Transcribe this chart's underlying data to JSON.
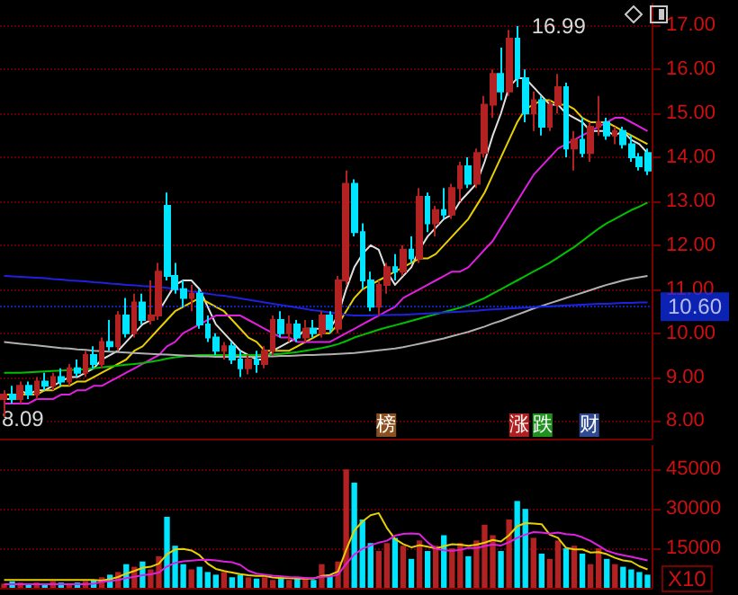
{
  "chart_data": [
    {
      "type": "candlestick",
      "categories": [
        null,
        null,
        null,
        null,
        null,
        null,
        null,
        null,
        null,
        null,
        null,
        null,
        null,
        null,
        null,
        null,
        null,
        null,
        null,
        null,
        null,
        null,
        null,
        null,
        null,
        null,
        null,
        null,
        null,
        null,
        null,
        null,
        null,
        null,
        null,
        null,
        null,
        null,
        null,
        null,
        null,
        null,
        null,
        null,
        null,
        null,
        null,
        null,
        null,
        null,
        null,
        null,
        null,
        null,
        null,
        null,
        null,
        null,
        null,
        null,
        null,
        null,
        null,
        null,
        null,
        null,
        null,
        null,
        null,
        null,
        null,
        null,
        null,
        null,
        null,
        null,
        null,
        null,
        null,
        null
      ],
      "ohlc": [
        [
          8.5,
          8.7,
          8.09,
          8.6
        ],
        [
          8.6,
          8.8,
          8.4,
          8.5
        ],
        [
          8.5,
          8.9,
          8.4,
          8.8
        ],
        [
          8.8,
          8.9,
          8.5,
          8.6
        ],
        [
          8.6,
          9.0,
          8.5,
          8.9
        ],
        [
          8.9,
          9.1,
          8.7,
          8.8
        ],
        [
          8.8,
          9.1,
          8.7,
          9.0
        ],
        [
          9.0,
          9.2,
          8.8,
          8.9
        ],
        [
          8.9,
          9.3,
          8.8,
          9.2
        ],
        [
          9.2,
          9.4,
          9.0,
          9.1
        ],
        [
          9.1,
          9.6,
          9.0,
          9.5
        ],
        [
          9.5,
          9.7,
          9.2,
          9.3
        ],
        [
          9.3,
          9.9,
          9.2,
          9.8
        ],
        [
          9.8,
          10.3,
          9.6,
          9.7
        ],
        [
          9.7,
          10.5,
          9.6,
          10.4
        ],
        [
          10.4,
          10.8,
          9.9,
          10.0
        ],
        [
          10.0,
          10.9,
          9.9,
          10.7
        ],
        [
          10.7,
          10.9,
          10.2,
          10.3
        ],
        [
          10.3,
          11.2,
          10.2,
          10.4
        ],
        [
          10.4,
          11.6,
          10.3,
          11.4
        ],
        [
          12.9,
          13.2,
          11.2,
          11.3
        ],
        [
          11.3,
          11.6,
          10.9,
          11.0
        ],
        [
          11.0,
          11.2,
          10.6,
          10.8
        ],
        [
          10.8,
          11.1,
          10.5,
          10.9
        ],
        [
          10.9,
          11.0,
          10.1,
          10.2
        ],
        [
          10.2,
          10.4,
          9.8,
          9.9
        ],
        [
          9.9,
          10.0,
          9.5,
          9.6
        ],
        [
          9.6,
          9.8,
          9.4,
          9.7
        ],
        [
          9.7,
          9.8,
          9.3,
          9.4
        ],
        [
          9.4,
          9.6,
          9.0,
          9.2
        ],
        [
          9.2,
          9.5,
          9.06,
          9.4
        ],
        [
          9.4,
          9.6,
          9.1,
          9.3
        ],
        [
          9.3,
          9.7,
          9.2,
          9.6
        ],
        [
          9.6,
          10.4,
          9.5,
          10.3
        ],
        [
          10.3,
          10.5,
          9.9,
          10.0
        ],
        [
          10.0,
          10.4,
          9.8,
          10.2
        ],
        [
          10.2,
          10.3,
          9.8,
          9.9
        ],
        [
          9.9,
          10.3,
          9.8,
          10.1
        ],
        [
          10.1,
          10.3,
          9.9,
          10.0
        ],
        [
          10.0,
          10.5,
          9.9,
          10.4
        ],
        [
          10.4,
          10.5,
          10.0,
          10.1
        ],
        [
          10.1,
          11.3,
          10.0,
          11.2
        ],
        [
          11.2,
          13.7,
          11.1,
          13.4
        ],
        [
          13.4,
          13.5,
          12.2,
          12.3
        ],
        [
          12.3,
          12.5,
          11.0,
          11.2
        ],
        [
          11.2,
          11.4,
          10.5,
          10.6
        ],
        [
          10.6,
          11.2,
          10.4,
          11.1
        ],
        [
          11.1,
          11.6,
          10.9,
          11.5
        ],
        [
          11.5,
          11.8,
          11.2,
          11.4
        ],
        [
          11.4,
          12.0,
          11.3,
          11.9
        ],
        [
          11.9,
          12.2,
          11.6,
          11.7
        ],
        [
          11.7,
          13.3,
          11.6,
          13.1
        ],
        [
          13.1,
          13.2,
          12.3,
          12.5
        ],
        [
          12.5,
          12.9,
          12.2,
          12.8
        ],
        [
          12.8,
          13.3,
          12.6,
          12.7
        ],
        [
          12.7,
          13.4,
          12.6,
          13.3
        ],
        [
          13.3,
          13.9,
          13.0,
          13.8
        ],
        [
          13.8,
          14.0,
          13.3,
          13.4
        ],
        [
          13.4,
          14.2,
          13.3,
          14.1
        ],
        [
          14.1,
          15.4,
          14.0,
          15.2
        ],
        [
          15.2,
          16.0,
          14.9,
          15.9
        ],
        [
          15.9,
          16.5,
          15.3,
          15.5
        ],
        [
          15.5,
          16.9,
          15.4,
          16.7
        ],
        [
          16.7,
          16.99,
          15.6,
          15.8
        ],
        [
          15.8,
          16.0,
          14.8,
          15.0
        ],
        [
          15.0,
          15.5,
          14.6,
          15.3
        ],
        [
          15.3,
          15.4,
          14.5,
          14.7
        ],
        [
          14.7,
          15.3,
          14.6,
          15.2
        ],
        [
          15.2,
          15.9,
          15.0,
          15.6
        ],
        [
          15.6,
          15.7,
          14.0,
          14.2
        ],
        [
          14.2,
          14.6,
          13.7,
          14.4
        ],
        [
          14.4,
          14.9,
          14.0,
          14.1
        ],
        [
          14.1,
          14.8,
          13.9,
          14.7
        ],
        [
          14.7,
          15.4,
          14.5,
          14.8
        ],
        [
          14.8,
          14.9,
          14.4,
          14.5
        ],
        [
          14.5,
          14.7,
          14.3,
          14.6
        ],
        [
          14.6,
          14.7,
          14.2,
          14.3
        ],
        [
          14.3,
          14.5,
          13.9,
          14.0
        ],
        [
          14.0,
          14.1,
          13.7,
          13.8
        ],
        [
          14.1,
          14.2,
          13.6,
          13.7
        ]
      ],
      "colors": [
        "#b22222",
        "#00e5ff",
        "#b22222",
        "#00e5ff",
        "#b22222",
        "#00e5ff",
        "#b22222",
        "#00e5ff",
        "#b22222",
        "#00e5ff",
        "#b22222",
        "#00e5ff",
        "#b22222",
        "#00e5ff",
        "#b22222",
        "#00e5ff",
        "#b22222",
        "#00e5ff",
        "#b22222",
        "#b22222",
        "#00e5ff",
        "#00e5ff",
        "#00e5ff",
        "#b22222",
        "#00e5ff",
        "#00e5ff",
        "#00e5ff",
        "#b22222",
        "#00e5ff",
        "#00e5ff",
        "#b22222",
        "#00e5ff",
        "#b22222",
        "#b22222",
        "#00e5ff",
        "#b22222",
        "#00e5ff",
        "#b22222",
        "#00e5ff",
        "#b22222",
        "#00e5ff",
        "#b22222",
        "#b22222",
        "#00e5ff",
        "#00e5ff",
        "#00e5ff",
        "#b22222",
        "#b22222",
        "#00e5ff",
        "#b22222",
        "#00e5ff",
        "#b22222",
        "#00e5ff",
        "#b22222",
        "#00e5ff",
        "#b22222",
        "#b22222",
        "#00e5ff",
        "#b22222",
        "#b22222",
        "#b22222",
        "#00e5ff",
        "#b22222",
        "#00e5ff",
        "#00e5ff",
        "#b22222",
        "#00e5ff",
        "#b22222",
        "#b22222",
        "#00e5ff",
        "#b22222",
        "#00e5ff",
        "#b22222",
        "#b22222",
        "#00e5ff",
        "#b22222",
        "#00e5ff",
        "#00e5ff",
        "#00e5ff",
        "#00e5ff"
      ],
      "series": [
        {
          "type": "line",
          "color": "#e0e0e0",
          "values": [
            8.5,
            8.5,
            8.7,
            8.6,
            8.7,
            8.7,
            8.8,
            8.9,
            9.0,
            9.0,
            9.1,
            9.2,
            9.4,
            9.5,
            9.6,
            9.8,
            10.0,
            10.2,
            10.3,
            10.5,
            10.8,
            11.1,
            11.2,
            11.2,
            11.0,
            10.6,
            10.2,
            10.0,
            9.8,
            9.6,
            9.5,
            9.4,
            9.4,
            9.6,
            9.7,
            9.8,
            9.9,
            10.1,
            10.1,
            10.1,
            10.1,
            10.4,
            11.0,
            11.5,
            11.8,
            12.0,
            11.9,
            11.4,
            11.1,
            11.3,
            11.5,
            11.9,
            12.2,
            12.4,
            12.6,
            12.7,
            13.0,
            13.2,
            13.4,
            13.9,
            14.5,
            15.0,
            15.6,
            15.8,
            15.8,
            15.6,
            15.4,
            15.2,
            15.2,
            15.0,
            14.9,
            14.8,
            14.6,
            14.6,
            14.6,
            14.5,
            14.6,
            14.4,
            14.3,
            14.1
          ]
        },
        {
          "type": "line",
          "color": "#e8d000",
          "values": [
            8.6,
            8.6,
            8.6,
            8.6,
            8.6,
            8.7,
            8.7,
            8.8,
            8.8,
            8.9,
            8.9,
            9.0,
            9.1,
            9.2,
            9.3,
            9.4,
            9.6,
            9.7,
            9.9,
            10.1,
            10.3,
            10.5,
            10.6,
            10.7,
            10.8,
            10.7,
            10.6,
            10.5,
            10.3,
            10.1,
            9.9,
            9.8,
            9.6,
            9.6,
            9.6,
            9.6,
            9.7,
            9.8,
            9.9,
            10.0,
            10.0,
            10.2,
            10.5,
            10.8,
            11.0,
            11.1,
            11.2,
            11.3,
            11.4,
            11.5,
            11.6,
            11.7,
            11.7,
            11.8,
            12.0,
            12.2,
            12.4,
            12.6,
            12.9,
            13.2,
            13.6,
            14.0,
            14.4,
            14.8,
            15.1,
            15.2,
            15.3,
            15.3,
            15.2,
            15.2,
            15.1,
            14.9,
            14.8,
            14.8,
            14.8,
            14.7,
            14.6,
            14.5,
            14.4,
            14.3
          ]
        },
        {
          "type": "line",
          "color": "#e020e0",
          "values": [
            8.4,
            8.4,
            8.4,
            8.4,
            8.5,
            8.5,
            8.5,
            8.6,
            8.6,
            8.7,
            8.7,
            8.8,
            8.8,
            8.9,
            9.0,
            9.1,
            9.2,
            9.3,
            9.4,
            9.5,
            9.7,
            9.8,
            10.0,
            10.1,
            10.2,
            10.3,
            10.4,
            10.4,
            10.4,
            10.4,
            10.3,
            10.2,
            10.1,
            10.0,
            9.9,
            9.9,
            9.8,
            9.8,
            9.8,
            9.8,
            9.8,
            9.9,
            10.0,
            10.1,
            10.2,
            10.3,
            10.4,
            10.5,
            10.6,
            10.8,
            10.9,
            11.0,
            11.1,
            11.2,
            11.3,
            11.4,
            11.4,
            11.5,
            11.7,
            11.9,
            12.1,
            12.4,
            12.7,
            13.0,
            13.3,
            13.6,
            13.8,
            14.0,
            14.2,
            14.3,
            14.4,
            14.5,
            14.6,
            14.7,
            14.8,
            14.9,
            14.9,
            14.8,
            14.7,
            14.6
          ]
        },
        {
          "type": "line",
          "color": "#00c000",
          "values": [
            9.1,
            9.1,
            9.1,
            9.11,
            9.12,
            9.13,
            9.14,
            9.15,
            9.16,
            9.17,
            9.18,
            9.2,
            9.22,
            9.24,
            9.26,
            9.28,
            9.3,
            9.32,
            9.35,
            9.38,
            9.42,
            9.45,
            9.47,
            9.49,
            9.5,
            9.5,
            9.5,
            9.5,
            9.5,
            9.5,
            9.5,
            9.5,
            9.51,
            9.52,
            9.53,
            9.55,
            9.57,
            9.6,
            9.63,
            9.66,
            9.7,
            9.75,
            9.82,
            9.9,
            9.96,
            10.02,
            10.08,
            10.13,
            10.18,
            10.23,
            10.28,
            10.33,
            10.38,
            10.43,
            10.48,
            10.53,
            10.58,
            10.64,
            10.72,
            10.8,
            10.9,
            11.0,
            11.1,
            11.2,
            11.3,
            11.4,
            11.5,
            11.6,
            11.72,
            11.84,
            11.96,
            12.1,
            12.24,
            12.38,
            12.5,
            12.6,
            12.7,
            12.8,
            12.88,
            12.97
          ]
        },
        {
          "type": "line",
          "color": "#b0b0b0",
          "values": [
            9.8,
            9.78,
            9.76,
            9.74,
            9.72,
            9.7,
            9.68,
            9.66,
            9.65,
            9.63,
            9.62,
            9.6,
            9.59,
            9.58,
            9.57,
            9.56,
            9.55,
            9.54,
            9.53,
            9.52,
            9.51,
            9.5,
            9.49,
            9.48,
            9.47,
            9.47,
            9.46,
            9.46,
            9.46,
            9.46,
            9.46,
            9.46,
            9.47,
            9.47,
            9.48,
            9.48,
            9.49,
            9.5,
            9.5,
            9.51,
            9.52,
            9.53,
            9.54,
            9.55,
            9.57,
            9.59,
            9.61,
            9.63,
            9.65,
            9.68,
            9.72,
            9.76,
            9.8,
            9.84,
            9.88,
            9.93,
            9.98,
            10.03,
            10.09,
            10.15,
            10.22,
            10.28,
            10.35,
            10.42,
            10.49,
            10.56,
            10.62,
            10.68,
            10.74,
            10.8,
            10.86,
            10.92,
            10.98,
            11.04,
            11.1,
            11.15,
            11.2,
            11.24,
            11.27,
            11.3
          ]
        },
        {
          "type": "line",
          "color": "#2020e0",
          "values": [
            11.3,
            11.29,
            11.28,
            11.27,
            11.26,
            11.25,
            11.23,
            11.22,
            11.2,
            11.19,
            11.18,
            11.16,
            11.15,
            11.13,
            11.12,
            11.1,
            11.09,
            11.07,
            11.06,
            11.05,
            11.03,
            11.0,
            10.98,
            10.95,
            10.93,
            10.9,
            10.87,
            10.85,
            10.82,
            10.79,
            10.76,
            10.73,
            10.7,
            10.67,
            10.64,
            10.61,
            10.58,
            10.55,
            10.52,
            10.5,
            10.47,
            10.45,
            10.42,
            10.4,
            10.4,
            10.4,
            10.41,
            10.41,
            10.42,
            10.42,
            10.43,
            10.44,
            10.45,
            10.46,
            10.47,
            10.48,
            10.49,
            10.5,
            10.51,
            10.53,
            10.54,
            10.55,
            10.56,
            10.57,
            10.58,
            10.59,
            10.6,
            10.61,
            10.62,
            10.63,
            10.64,
            10.65,
            10.66,
            10.67,
            10.67,
            10.68,
            10.69,
            10.69,
            10.7,
            10.7
          ]
        }
      ],
      "ylim": [
        7.6,
        17.5
      ],
      "yticks": [
        {
          "value": 8,
          "label": "8.00"
        },
        {
          "value": 9,
          "label": "9.00"
        },
        {
          "value": 10,
          "label": "10.00"
        },
        {
          "value": 11,
          "label": "11.00"
        },
        {
          "value": 12,
          "label": "12.00"
        },
        {
          "value": 13,
          "label": "13.00"
        },
        {
          "value": 14,
          "label": "14.00"
        },
        {
          "value": 15,
          "label": "15.00"
        },
        {
          "value": 16,
          "label": "16.00"
        },
        {
          "value": 17,
          "label": "17.00"
        }
      ],
      "grid": "y",
      "tick_labels": "y",
      "ref_lines": [
        {
          "axis": "y",
          "value": 10.6,
          "label": "10.60",
          "color": "#1030ff"
        }
      ],
      "annotations": [
        "16.99",
        "8.09",
        "榜",
        "涨跌",
        "财"
      ]
    },
    {
      "type": "bar",
      "categories": [
        null,
        null,
        null,
        null,
        null,
        null,
        null,
        null,
        null,
        null,
        null,
        null,
        null,
        null,
        null,
        null,
        null,
        null,
        null,
        null,
        null,
        null,
        null,
        null,
        null,
        null,
        null,
        null,
        null,
        null,
        null,
        null,
        null,
        null,
        null,
        null,
        null,
        null,
        null,
        null,
        null,
        null,
        null,
        null,
        null,
        null,
        null,
        null,
        null,
        null,
        null,
        null,
        null,
        null,
        null,
        null,
        null,
        null,
        null,
        null,
        null,
        null,
        null,
        null,
        null,
        null,
        null,
        null,
        null,
        null,
        null,
        null,
        null,
        null,
        null,
        null,
        null,
        null,
        null,
        null
      ],
      "values": [
        1500,
        2500,
        2000,
        1500,
        2000,
        1500,
        2500,
        2000,
        1500,
        2000,
        2500,
        3000,
        4000,
        5000,
        6000,
        9000,
        8000,
        10000,
        7000,
        12000,
        27000,
        16000,
        9000,
        7000,
        8000,
        6000,
        5000,
        6000,
        4000,
        5000,
        4000,
        3500,
        4000,
        3000,
        4000,
        3000,
        3500,
        4000,
        3000,
        9000,
        5000,
        10000,
        45000,
        40000,
        26000,
        17000,
        14000,
        17000,
        19000,
        16000,
        11000,
        18000,
        14000,
        16000,
        20000,
        15000,
        17000,
        12000,
        18000,
        24000,
        20000,
        14000,
        26000,
        33000,
        30000,
        19000,
        13000,
        11000,
        18000,
        15000,
        16000,
        13000,
        9000,
        15000,
        11000,
        9000,
        8000,
        7000,
        6000,
        5000
      ],
      "colors": [
        "#b22222",
        "#00e5ff",
        "#b22222",
        "#00e5ff",
        "#b22222",
        "#00e5ff",
        "#b22222",
        "#00e5ff",
        "#b22222",
        "#00e5ff",
        "#b22222",
        "#00e5ff",
        "#b22222",
        "#00e5ff",
        "#b22222",
        "#00e5ff",
        "#b22222",
        "#00e5ff",
        "#b22222",
        "#b22222",
        "#00e5ff",
        "#00e5ff",
        "#00e5ff",
        "#b22222",
        "#00e5ff",
        "#00e5ff",
        "#00e5ff",
        "#b22222",
        "#00e5ff",
        "#00e5ff",
        "#b22222",
        "#00e5ff",
        "#b22222",
        "#b22222",
        "#00e5ff",
        "#b22222",
        "#00e5ff",
        "#b22222",
        "#00e5ff",
        "#b22222",
        "#00e5ff",
        "#b22222",
        "#b22222",
        "#00e5ff",
        "#00e5ff",
        "#00e5ff",
        "#b22222",
        "#b22222",
        "#00e5ff",
        "#b22222",
        "#00e5ff",
        "#b22222",
        "#00e5ff",
        "#b22222",
        "#00e5ff",
        "#b22222",
        "#b22222",
        "#00e5ff",
        "#b22222",
        "#b22222",
        "#b22222",
        "#00e5ff",
        "#b22222",
        "#00e5ff",
        "#00e5ff",
        "#b22222",
        "#00e5ff",
        "#b22222",
        "#b22222",
        "#00e5ff",
        "#b22222",
        "#00e5ff",
        "#b22222",
        "#b22222",
        "#00e5ff",
        "#b22222",
        "#00e5ff",
        "#00e5ff",
        "#00e5ff",
        "#00e5ff"
      ],
      "series": [
        {
          "type": "line",
          "color": "#e8d000",
          "values": [
            3000,
            3000,
            3000,
            3000,
            3000,
            3000,
            3000,
            3000,
            3000,
            3000,
            3000,
            3000,
            2700,
            3300,
            4100,
            5400,
            6400,
            7600,
            8000,
            9200,
            12800,
            14600,
            14800,
            14200,
            12400,
            9200,
            7200,
            6400,
            5800,
            5200,
            4800,
            4500,
            4500,
            3900,
            3700,
            3700,
            3500,
            3500,
            3500,
            4500,
            4900,
            6200,
            14400,
            21800,
            25200,
            27600,
            28400,
            22800,
            18600,
            16600,
            15400,
            16200,
            15600,
            15000,
            15800,
            16600,
            16400,
            16000,
            16400,
            17200,
            18200,
            17600,
            20000,
            23400,
            24600,
            24400,
            24200,
            20200,
            19000,
            15200,
            14600,
            14600,
            13400,
            13600,
            12800,
            11400,
            10400,
            10000,
            8200,
            7000
          ]
        },
        {
          "type": "line",
          "color": "#e020e0",
          "values": [
            1400,
            1400,
            1400,
            1400,
            1400,
            1400,
            1400,
            1400,
            1400,
            1400,
            1400,
            1500,
            2300,
            2600,
            3000,
            3700,
            4200,
            4800,
            5100,
            5800,
            8100,
            9500,
            10100,
            10300,
            10600,
            10700,
            10400,
            10000,
            9700,
            8700,
            6500,
            5400,
            5000,
            4600,
            4400,
            4100,
            4000,
            3800,
            3700,
            4200,
            4300,
            5000,
            9100,
            12700,
            14800,
            16100,
            17200,
            17900,
            19800,
            20500,
            20700,
            20400,
            17300,
            14900,
            14300,
            14100,
            14400,
            15200,
            15100,
            15900,
            16500,
            16100,
            17300,
            19000,
            20200,
            21200,
            21000,
            20600,
            21000,
            20400,
            20200,
            19200,
            17800,
            16000,
            14100,
            13100,
            12400,
            11800,
            11100,
            10400
          ]
        }
      ],
      "ylim": [
        0,
        54000
      ],
      "yticks": [
        15000,
        30000,
        45000
      ],
      "grid": "y",
      "tick_labels": "y",
      "annotations": [
        "X10"
      ]
    }
  ]
}
